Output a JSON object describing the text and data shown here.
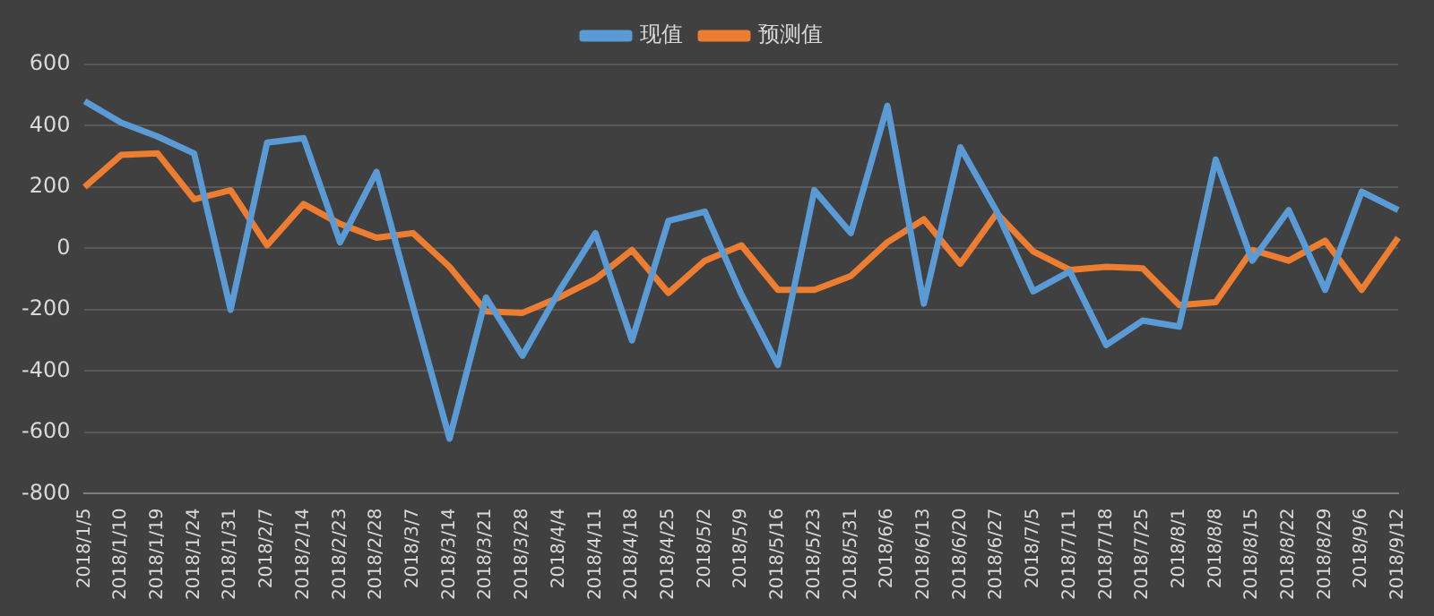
{
  "chart_data": {
    "type": "line",
    "categories": [
      "2018/1/5",
      "2018/1/10",
      "2018/1/19",
      "2018/1/24",
      "2018/1/31",
      "2018/2/7",
      "2018/2/14",
      "2018/2/23",
      "2018/2/28",
      "2018/3/7",
      "2018/3/14",
      "2018/3/21",
      "2018/3/28",
      "2018/4/4",
      "2018/4/11",
      "2018/4/18",
      "2018/4/25",
      "2018/5/2",
      "2018/5/9",
      "2018/5/16",
      "2018/5/23",
      "2018/5/31",
      "2018/6/6",
      "2018/6/13",
      "2018/6/20",
      "2018/6/27",
      "2018/7/5",
      "2018/7/11",
      "2018/7/18",
      "2018/7/25",
      "2018/8/1",
      "2018/8/8",
      "2018/8/15",
      "2018/8/22",
      "2018/8/29",
      "2018/9/6",
      "2018/9/12"
    ],
    "series": [
      {
        "name": "现值",
        "color": "#5b9bd5",
        "values": [
          480,
          410,
          365,
          310,
          -200,
          345,
          360,
          20,
          250,
          -190,
          -620,
          -160,
          -350,
          -140,
          50,
          -300,
          90,
          120,
          -150,
          -380,
          190,
          50,
          465,
          -180,
          330,
          120,
          -140,
          -75,
          -315,
          -235,
          -255,
          290,
          -40,
          125,
          -135,
          185,
          125
        ]
      },
      {
        "name": "预测值",
        "color": "#ed7d31",
        "values": [
          200,
          305,
          310,
          160,
          190,
          10,
          145,
          80,
          35,
          50,
          -60,
          -205,
          -210,
          -160,
          -100,
          -5,
          -145,
          -40,
          10,
          -135,
          -135,
          -90,
          20,
          95,
          -50,
          115,
          -10,
          -70,
          -60,
          -65,
          -185,
          -175,
          -5,
          -40,
          25,
          -135,
          35
        ]
      }
    ],
    "ylim": [
      -800,
      600
    ],
    "yticks": [
      -800,
      -600,
      -400,
      -200,
      0,
      200,
      400,
      600
    ],
    "grid": "y",
    "legend": "top",
    "marker": "none",
    "line_style": "solid"
  }
}
